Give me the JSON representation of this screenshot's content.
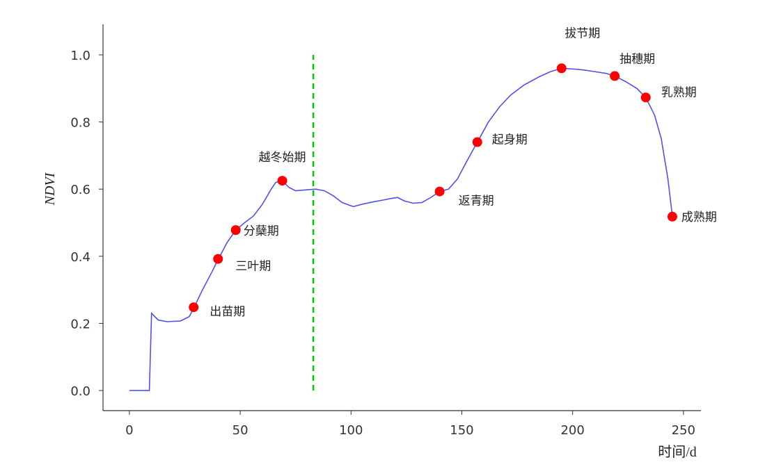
{
  "chart_data": {
    "type": "line",
    "x_label": "时间/d",
    "y_label": "NDVI",
    "x": [
      0,
      9,
      10,
      13,
      17,
      23,
      27,
      29,
      33,
      37,
      40,
      44,
      48,
      52,
      56,
      60,
      64,
      66,
      69,
      72,
      75,
      80,
      84,
      88,
      92,
      96,
      101,
      105,
      110,
      115,
      118,
      121,
      124,
      128,
      132,
      136,
      140,
      144,
      148,
      152,
      157,
      162,
      167,
      172,
      178,
      185,
      190,
      195,
      200,
      205,
      210,
      215,
      219,
      224,
      229,
      233,
      237,
      240,
      243,
      245
    ],
    "series": [
      {
        "color": "#5050f0",
        "values": [
          0,
          0,
          0.23,
          0.21,
          0.205,
          0.207,
          0.22,
          0.245,
          0.3,
          0.35,
          0.39,
          0.44,
          0.478,
          0.5,
          0.52,
          0.555,
          0.6,
          0.62,
          0.625,
          0.605,
          0.595,
          0.598,
          0.6,
          0.595,
          0.58,
          0.56,
          0.548,
          0.555,
          0.562,
          0.568,
          0.572,
          0.575,
          0.565,
          0.558,
          0.56,
          0.575,
          0.593,
          0.6,
          0.63,
          0.68,
          0.74,
          0.8,
          0.845,
          0.88,
          0.91,
          0.935,
          0.95,
          0.96,
          0.958,
          0.955,
          0.95,
          0.945,
          0.937,
          0.92,
          0.9,
          0.873,
          0.82,
          0.75,
          0.63,
          0.52
        ]
      }
    ],
    "points": {
      "color": "#ff0000",
      "x": [
        29,
        40,
        48,
        69,
        140,
        157,
        195,
        219,
        233,
        245
      ],
      "values": [
        0.248,
        0.392,
        0.478,
        0.625,
        0.593,
        0.74,
        0.96,
        0.937,
        0.873,
        0.518
      ],
      "labels": [
        "出苗期",
        "三叶期",
        "分蘖期",
        "越冬始期",
        "返青期",
        "起身期",
        "拔节期",
        "抽穗期",
        "乳熟期",
        "成熟期"
      ]
    },
    "vline": {
      "x": 83,
      "ymin": 0,
      "ymax": 1,
      "color": "#00cc00"
    },
    "xlim": [
      -11.9,
      257.9
    ],
    "ylim": [
      -0.06,
      1.091
    ],
    "xticks": [
      0,
      50,
      100,
      150,
      200,
      250
    ],
    "yticks": [
      {
        "value": 0,
        "label": "0.0"
      },
      0.2,
      0.4,
      0.6,
      0.8,
      {
        "value": 1,
        "label": "1.0"
      }
    ]
  }
}
